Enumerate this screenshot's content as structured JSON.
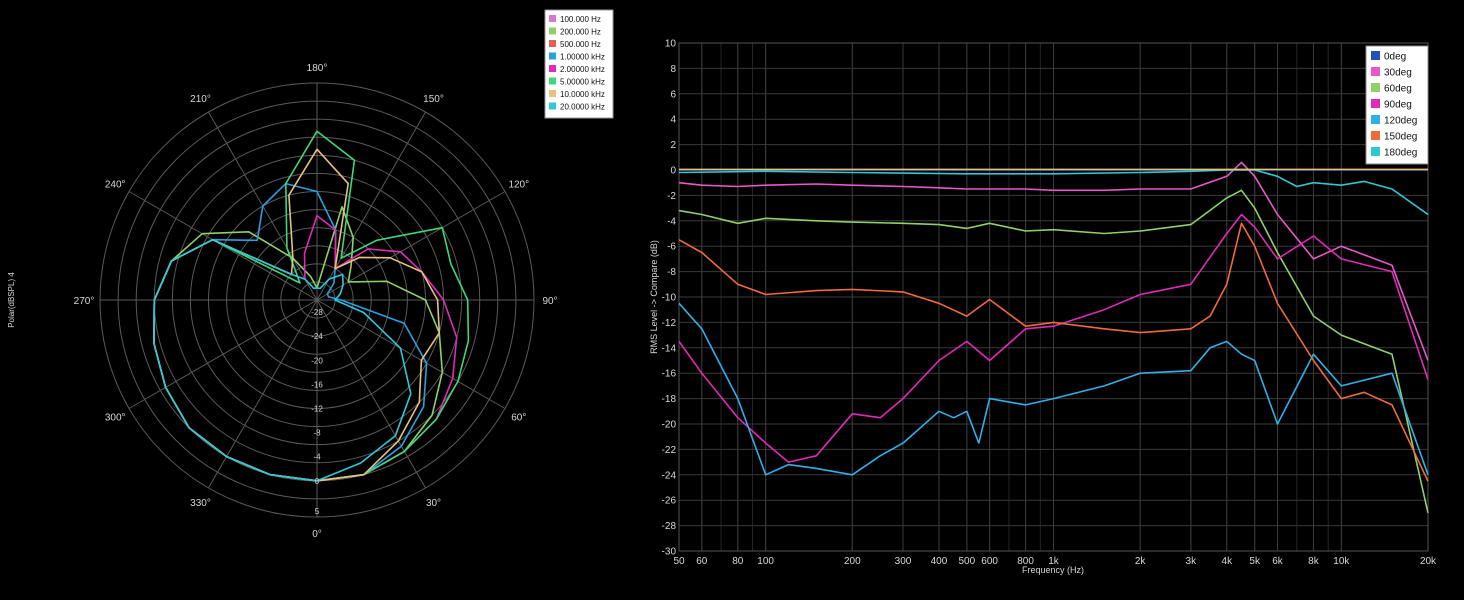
{
  "chart_data": [
    {
      "type": "polar",
      "ylabel": "Polar(dBSPL) 4",
      "radial_ticks": [
        5,
        0,
        -4,
        -8,
        -12,
        -16,
        -20,
        -24,
        -28
      ],
      "angle_labels": [
        "0°",
        "30°",
        "60°",
        "90°",
        "120°",
        "150°",
        "180°",
        "210°",
        "240°",
        "270°",
        "300°",
        "330°"
      ],
      "legend_placement": "top-right",
      "series": [
        {
          "name": "100.000 Hz",
          "color": "#d978c8"
        },
        {
          "name": "200.000 Hz",
          "color": "#8fd06a"
        },
        {
          "name": "500.000 Hz",
          "color": "#e0625a"
        },
        {
          "name": "1.00000 kHz",
          "color": "#2aa0e0"
        },
        {
          "name": "2.00000 kHz",
          "color": "#e02ab8"
        },
        {
          "name": "5.00000 kHz",
          "color": "#3dd87a"
        },
        {
          "name": "10.0000 kHz",
          "color": "#e8c080"
        },
        {
          "name": "20.0000 kHz",
          "color": "#30c8d8"
        }
      ],
      "curves": [
        {
          "color": "#8fd06a",
          "angles": [
            0,
            15,
            30,
            45,
            60,
            75,
            90,
            105,
            120,
            135,
            150,
            165,
            180,
            195,
            210,
            225,
            240,
            255,
            270,
            285,
            300,
            315,
            330,
            345,
            360
          ],
          "values": [
            0,
            0,
            -1,
            -3,
            -6,
            -9,
            -12,
            -18,
            -24,
            -22,
            -18,
            -14,
            -28,
            -26,
            -22,
            -14,
            -8,
            -5,
            -3,
            -2,
            -1,
            0,
            0,
            0,
            0
          ]
        },
        {
          "color": "#2aa0e0",
          "angles": [
            0,
            15,
            30,
            45,
            60,
            75,
            90,
            105,
            120,
            135,
            150,
            165,
            180,
            195,
            210,
            225,
            240,
            255,
            270,
            285,
            300,
            315,
            330,
            345,
            360
          ],
          "values": [
            0,
            0,
            -2,
            -5,
            -9,
            -15,
            -26,
            -28,
            -28,
            -26,
            -24,
            -18,
            -12,
            -10,
            -12,
            -16,
            -10,
            -5,
            -3,
            -2,
            -1,
            0,
            0,
            0,
            0
          ]
        },
        {
          "color": "#e02ab8",
          "angles": [
            0,
            15,
            30,
            45,
            60,
            75,
            90,
            105,
            120,
            135,
            150,
            165,
            180,
            195,
            210,
            225,
            240,
            255,
            270,
            285,
            300,
            315,
            330,
            345,
            360
          ],
          "values": [
            0,
            0,
            -1,
            -2,
            -4,
            -6,
            -9,
            -12,
            -14,
            -18,
            -24,
            -18,
            -16,
            -22,
            -26,
            -24,
            -10,
            -5,
            -3,
            -2,
            -1,
            0,
            0,
            0,
            0
          ]
        },
        {
          "color": "#3dd87a",
          "angles": [
            0,
            15,
            30,
            45,
            60,
            75,
            90,
            105,
            120,
            135,
            150,
            165,
            180,
            195,
            210,
            225,
            240,
            255,
            270,
            285,
            300,
            315,
            330,
            345,
            360
          ],
          "values": [
            0,
            0,
            -1,
            -2,
            -3,
            -4,
            -5,
            -7,
            -6,
            -16,
            -22,
            -6,
            -2,
            -10,
            -20,
            -26,
            -10,
            -5,
            -3,
            -2,
            -1,
            0,
            0,
            0,
            0
          ]
        },
        {
          "color": "#e8c080",
          "angles": [
            0,
            15,
            30,
            45,
            60,
            75,
            90,
            105,
            120,
            135,
            150,
            165,
            180,
            195,
            210,
            225,
            240,
            255,
            270,
            285,
            300,
            315,
            330,
            345,
            360
          ],
          "values": [
            0,
            0,
            -3,
            -6,
            -10,
            -9,
            -10,
            -12,
            -16,
            -20,
            -24,
            -10,
            -5,
            -12,
            -22,
            -24,
            -10,
            -5,
            -3,
            -2,
            -1,
            0,
            0,
            0,
            0
          ]
        },
        {
          "color": "#30c8d8",
          "angles": [
            0,
            15,
            30,
            45,
            60,
            75,
            90,
            105,
            120,
            135,
            150,
            165,
            180,
            195,
            210,
            225,
            240,
            255,
            270,
            285,
            300,
            315,
            330,
            345,
            360
          ],
          "values": [
            0,
            -2,
            -4,
            -8,
            -14,
            -22,
            -27,
            -26,
            -25,
            -24,
            -26,
            -28,
            -28,
            -28,
            -26,
            -24,
            -10,
            -5,
            -3,
            -2,
            -1,
            0,
            0,
            0,
            0
          ]
        }
      ]
    },
    {
      "type": "line",
      "xlabel": "Frequency (Hz)",
      "ylabel": "RMS Level -> Compare (dB)",
      "xscale": "log",
      "xlim": [
        50,
        20000
      ],
      "ylim": [
        -30,
        10
      ],
      "x_ticks": [
        50,
        60,
        80,
        100,
        200,
        300,
        400,
        500,
        600,
        800,
        1000,
        2000,
        3000,
        4000,
        5000,
        6000,
        8000,
        10000,
        20000
      ],
      "x_tick_labels": [
        "50",
        "60",
        "80",
        "100",
        "200",
        "300",
        "400",
        "500",
        "600",
        "800",
        "1k",
        "2k",
        "3k",
        "4k",
        "5k",
        "6k",
        "8k",
        "10k",
        "20k"
      ],
      "y_ticks": [
        10,
        8,
        6,
        4,
        2,
        0,
        -2,
        -4,
        -6,
        -8,
        -10,
        -12,
        -14,
        -16,
        -18,
        -20,
        -22,
        -24,
        -26,
        -28,
        -30
      ],
      "legend_placement": "top-right",
      "series": [
        {
          "name": "0deg",
          "color": "#2050b8",
          "x": [
            50,
            20000
          ],
          "y": [
            0,
            0
          ]
        },
        {
          "name": "30deg",
          "color": "#e858c8",
          "x": [
            50,
            60,
            80,
            100,
            150,
            200,
            300,
            400,
            500,
            600,
            800,
            1000,
            1500,
            2000,
            3000,
            4000,
            4500,
            5000,
            6000,
            8000,
            10000,
            15000,
            20000
          ],
          "y": [
            -1.0,
            -1.2,
            -1.3,
            -1.2,
            -1.1,
            -1.2,
            -1.3,
            -1.4,
            -1.5,
            -1.5,
            -1.5,
            -1.6,
            -1.6,
            -1.5,
            -1.5,
            -0.5,
            0.6,
            -0.5,
            -3.5,
            -7.0,
            -6.0,
            -7.5,
            -15.0
          ]
        },
        {
          "name": "60deg",
          "color": "#8fd06a",
          "x": [
            50,
            60,
            80,
            100,
            150,
            200,
            300,
            400,
            500,
            600,
            800,
            1000,
            1500,
            2000,
            3000,
            4000,
            4500,
            5000,
            6000,
            8000,
            10000,
            15000,
            20000
          ],
          "y": [
            -3.2,
            -3.5,
            -4.2,
            -3.8,
            -4.0,
            -4.1,
            -4.2,
            -4.3,
            -4.6,
            -4.2,
            -4.8,
            -4.7,
            -5.0,
            -4.8,
            -4.3,
            -2.2,
            -1.6,
            -3.0,
            -6.5,
            -11.5,
            -13.0,
            -14.5,
            -27.0
          ]
        },
        {
          "name": "90deg",
          "color": "#e02ab8",
          "x": [
            50,
            60,
            80,
            100,
            120,
            150,
            200,
            250,
            300,
            400,
            500,
            600,
            800,
            1000,
            1500,
            2000,
            3000,
            4000,
            4500,
            5000,
            6000,
            8000,
            10000,
            15000,
            20000
          ],
          "y": [
            -13.5,
            -16.0,
            -19.5,
            -21.5,
            -23.0,
            -22.5,
            -19.2,
            -19.5,
            -18.0,
            -15.0,
            -13.5,
            -15.0,
            -12.5,
            -12.3,
            -11.0,
            -9.8,
            -9.0,
            -5.0,
            -3.5,
            -4.5,
            -7.0,
            -5.2,
            -7.0,
            -8.0,
            -16.5
          ]
        },
        {
          "name": "120deg",
          "color": "#30b0e8",
          "x": [
            50,
            60,
            80,
            100,
            120,
            150,
            200,
            250,
            300,
            400,
            450,
            500,
            550,
            600,
            800,
            1000,
            1500,
            2000,
            3000,
            3500,
            4000,
            4500,
            5000,
            6000,
            8000,
            10000,
            15000,
            20000
          ],
          "y": [
            -10.5,
            -12.5,
            -18.0,
            -24.0,
            -23.2,
            -23.5,
            -24.0,
            -22.5,
            -21.5,
            -19.0,
            -19.5,
            -19.0,
            -21.5,
            -18.0,
            -18.5,
            -18.0,
            -17.0,
            -16.0,
            -15.8,
            -14.0,
            -13.5,
            -14.5,
            -15.0,
            -20.0,
            -14.5,
            -17.0,
            -16.0,
            -24.0
          ]
        },
        {
          "name": "150deg",
          "color": "#f06a3a",
          "x": [
            50,
            60,
            80,
            100,
            150,
            200,
            300,
            400,
            500,
            600,
            800,
            1000,
            1500,
            2000,
            3000,
            3500,
            4000,
            4500,
            5000,
            6000,
            8000,
            10000,
            12000,
            15000,
            20000
          ],
          "y": [
            -5.5,
            -6.5,
            -9.0,
            -9.8,
            -9.5,
            -9.4,
            -9.6,
            -10.5,
            -11.5,
            -10.2,
            -12.3,
            -12.0,
            -12.5,
            -12.8,
            -12.5,
            -11.5,
            -9.0,
            -4.2,
            -6.0,
            -10.5,
            -15.0,
            -18.0,
            -17.5,
            -18.5,
            -24.5
          ]
        },
        {
          "name": "180deg",
          "color": "#30c8d0",
          "x": [
            50,
            100,
            200,
            500,
            1000,
            2000,
            3000,
            4000,
            5000,
            6000,
            7000,
            8000,
            10000,
            12000,
            15000,
            20000
          ],
          "y": [
            -0.2,
            -0.1,
            -0.2,
            -0.3,
            -0.3,
            -0.2,
            -0.1,
            0.0,
            0.0,
            -0.5,
            -1.3,
            -1.0,
            -1.2,
            -0.9,
            -1.5,
            -3.5
          ]
        },
        {
          "name": "",
          "color": "#e8c080",
          "x": [
            50,
            20000
          ],
          "y": [
            0.05,
            0.05
          ]
        }
      ]
    }
  ]
}
